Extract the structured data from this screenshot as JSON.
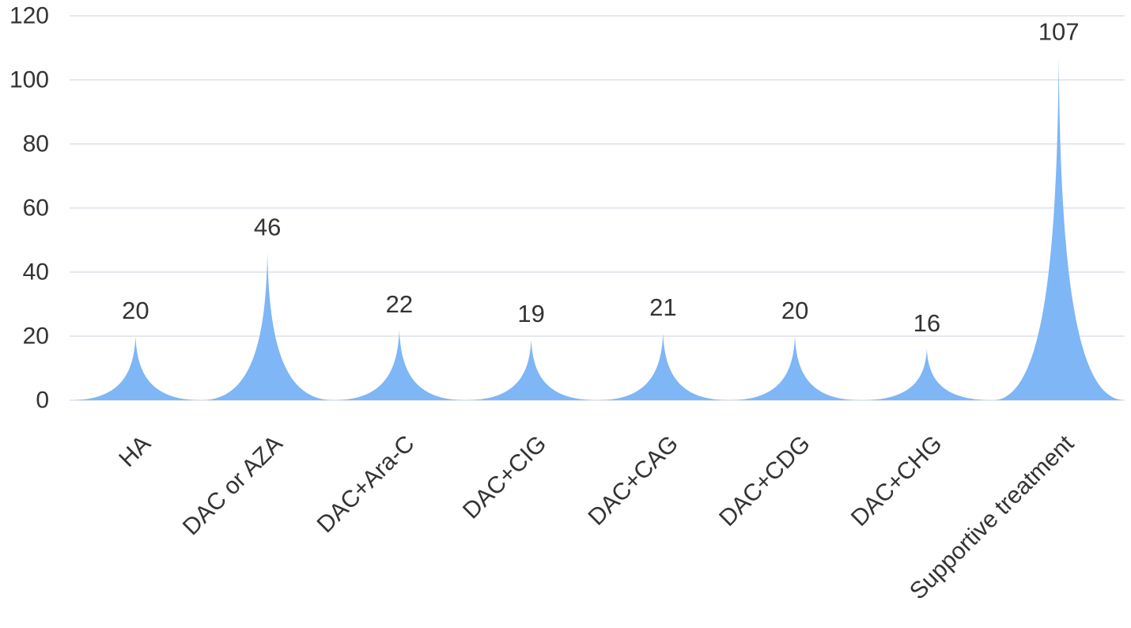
{
  "chart_data": {
    "type": "bar",
    "bar_shape": "pictorial-spike",
    "categories": [
      "HA",
      "DAC or AZA",
      "DAC+Ara-C",
      "DAC+CIG",
      "DAC+CAG",
      "DAC+CDG",
      "DAC+CHG",
      "Supportive treatment"
    ],
    "values": [
      20,
      46,
      22,
      19,
      21,
      20,
      16,
      107
    ],
    "data_labels": [
      "20",
      "46",
      "22",
      "19",
      "21",
      "20",
      "16",
      "107"
    ],
    "ylim": [
      0,
      120
    ],
    "yticks": [
      0,
      20,
      40,
      60,
      80,
      100,
      120
    ],
    "ytick_labels": [
      "0",
      "20",
      "40",
      "60",
      "80",
      "100",
      "120"
    ],
    "grid": true,
    "colors": {
      "fill": "#7eb6f6",
      "grid": "#e6e9ee",
      "text": "#333333"
    }
  }
}
